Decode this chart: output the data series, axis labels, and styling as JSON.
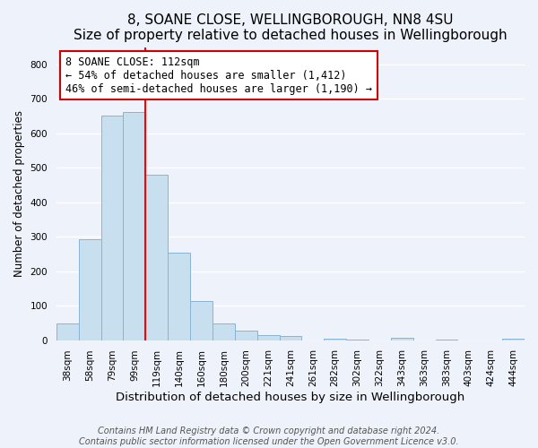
{
  "title": "8, SOANE CLOSE, WELLINGBOROUGH, NN8 4SU",
  "subtitle": "Size of property relative to detached houses in Wellingborough",
  "xlabel": "Distribution of detached houses by size in Wellingborough",
  "ylabel": "Number of detached properties",
  "bar_labels": [
    "38sqm",
    "58sqm",
    "79sqm",
    "99sqm",
    "119sqm",
    "140sqm",
    "160sqm",
    "180sqm",
    "200sqm",
    "221sqm",
    "241sqm",
    "261sqm",
    "282sqm",
    "302sqm",
    "322sqm",
    "343sqm",
    "363sqm",
    "383sqm",
    "403sqm",
    "424sqm",
    "444sqm"
  ],
  "bar_values": [
    48,
    293,
    651,
    661,
    480,
    255,
    114,
    48,
    28,
    15,
    13,
    0,
    4,
    2,
    0,
    6,
    0,
    1,
    0,
    0,
    5
  ],
  "bar_color": "#c8dff0",
  "bar_edge_color": "#8ab4d4",
  "vline_x_idx": 3.5,
  "vline_color": "red",
  "annotation_text": "8 SOANE CLOSE: 112sqm\n← 54% of detached houses are smaller (1,412)\n46% of semi-detached houses are larger (1,190) →",
  "annotation_box_color": "white",
  "annotation_box_edge_color": "#cc0000",
  "ylim": [
    0,
    850
  ],
  "yticks": [
    0,
    100,
    200,
    300,
    400,
    500,
    600,
    700,
    800
  ],
  "footer_line1": "Contains HM Land Registry data © Crown copyright and database right 2024.",
  "footer_line2": "Contains public sector information licensed under the Open Government Licence v3.0.",
  "background_color": "#eef2fa",
  "grid_color": "white",
  "title_fontsize": 11,
  "subtitle_fontsize": 10,
  "xlabel_fontsize": 9.5,
  "ylabel_fontsize": 8.5,
  "tick_fontsize": 7.5,
  "annotation_fontsize": 8.5,
  "footer_fontsize": 7
}
